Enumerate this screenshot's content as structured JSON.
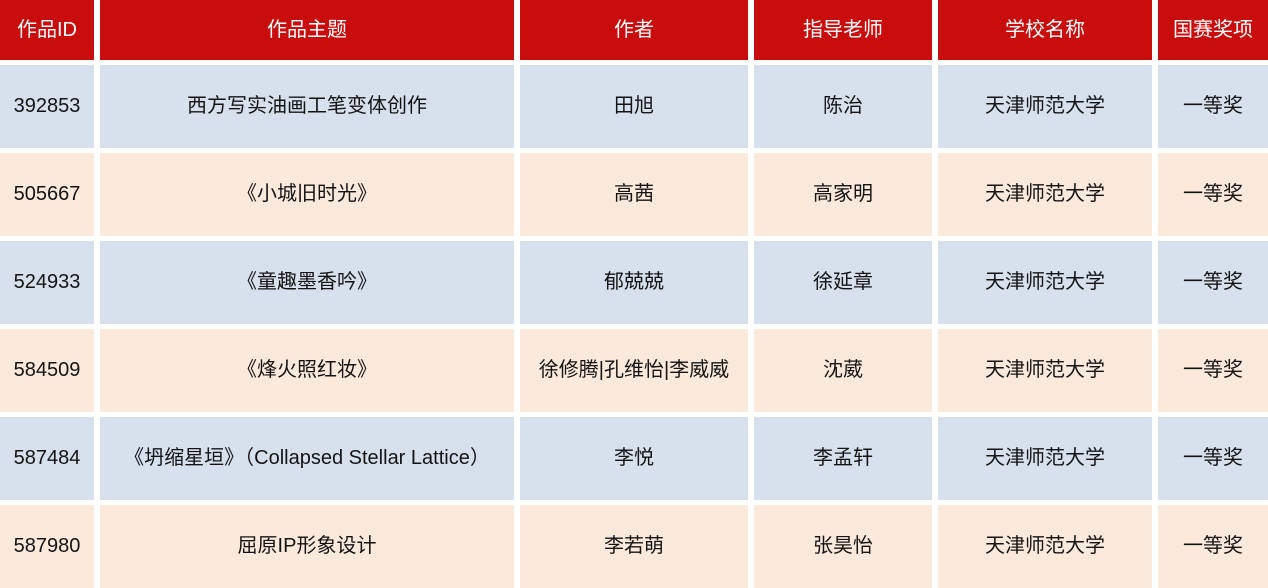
{
  "colors": {
    "header_bg": "#C90D0D",
    "header_text": "#FFFFFF",
    "row_blue_bg": "#D7E1ED",
    "row_peach_bg": "#FBE9DC",
    "separator": "#FFFFFF",
    "body_text": "#141414"
  },
  "table": {
    "headers": [
      "作品ID",
      "作品主题",
      "作者",
      "指导老师",
      "学校名称",
      "国赛奖项"
    ],
    "rows": [
      {
        "cells": [
          "392853",
          "西方写实油画工笔变体创作",
          "田旭",
          "陈治",
          "天津师范大学",
          "一等奖"
        ]
      },
      {
        "cells": [
          "505667",
          "《小城旧时光》",
          "高茜",
          "高家明",
          "天津师范大学",
          "一等奖"
        ]
      },
      {
        "cells": [
          "524933",
          "《童趣墨香吟》",
          "郁兢兢",
          "徐延章",
          "天津师范大学",
          "一等奖"
        ]
      },
      {
        "cells": [
          "584509",
          "《烽火照红妆》",
          "徐修腾|孔维怡|李威威",
          "沈葳",
          "天津师范大学",
          "一等奖"
        ]
      },
      {
        "cells": [
          "587484",
          "《坍缩星垣》（Collapsed Stellar Lattice）",
          "李悦",
          "李孟轩",
          "天津师范大学",
          "一等奖"
        ]
      },
      {
        "cells": [
          "587980",
          "屈原IP形象设计",
          "李若萌",
          "张昊怡",
          "天津师范大学",
          "一等奖"
        ]
      }
    ]
  }
}
